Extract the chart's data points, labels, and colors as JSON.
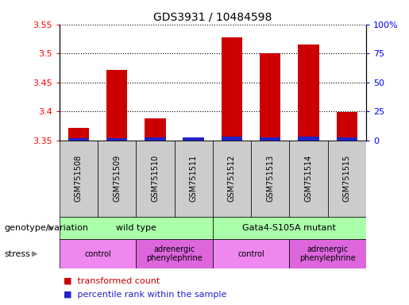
{
  "title": "GDS3931 / 10484598",
  "samples": [
    "GSM751508",
    "GSM751509",
    "GSM751510",
    "GSM751511",
    "GSM751512",
    "GSM751513",
    "GSM751514",
    "GSM751515"
  ],
  "transformed_count": [
    3.372,
    3.471,
    3.388,
    3.333,
    3.528,
    3.5,
    3.515,
    3.399
  ],
  "percentile_rank": [
    2.0,
    2.0,
    2.5,
    2.5,
    3.5,
    2.5,
    3.5,
    2.5
  ],
  "ylim_left": [
    3.35,
    3.55
  ],
  "ylim_right": [
    0,
    100
  ],
  "yticks_left": [
    3.35,
    3.4,
    3.45,
    3.5,
    3.55
  ],
  "yticks_right": [
    0,
    25,
    50,
    75,
    100
  ],
  "ytick_labels_right": [
    "0",
    "25",
    "50",
    "75",
    "100%"
  ],
  "bar_color_red": "#cc0000",
  "bar_color_blue": "#2222cc",
  "bar_width": 0.55,
  "genotype_groups": [
    {
      "label": "wild type",
      "start": 0,
      "end": 4,
      "color": "#aaffaa"
    },
    {
      "label": "Gata4-S105A mutant",
      "start": 4,
      "end": 8,
      "color": "#aaffaa"
    }
  ],
  "stress_groups": [
    {
      "label": "control",
      "start": 0,
      "end": 2,
      "color": "#ee88ee"
    },
    {
      "label": "adrenergic\nphenylephrine",
      "start": 2,
      "end": 4,
      "color": "#dd66dd"
    },
    {
      "label": "control",
      "start": 4,
      "end": 6,
      "color": "#ee88ee"
    },
    {
      "label": "adrenergic\nphenylephrine",
      "start": 6,
      "end": 8,
      "color": "#dd66dd"
    }
  ],
  "legend_items": [
    {
      "label": "transformed count",
      "color": "#cc0000"
    },
    {
      "label": "percentile rank within the sample",
      "color": "#2222cc"
    }
  ],
  "grid_color": "black",
  "grid_linestyle": ":",
  "grid_linewidth": 0.8,
  "genotype_label": "genotype/variation",
  "stress_label": "stress",
  "sample_box_color": "#cccccc"
}
